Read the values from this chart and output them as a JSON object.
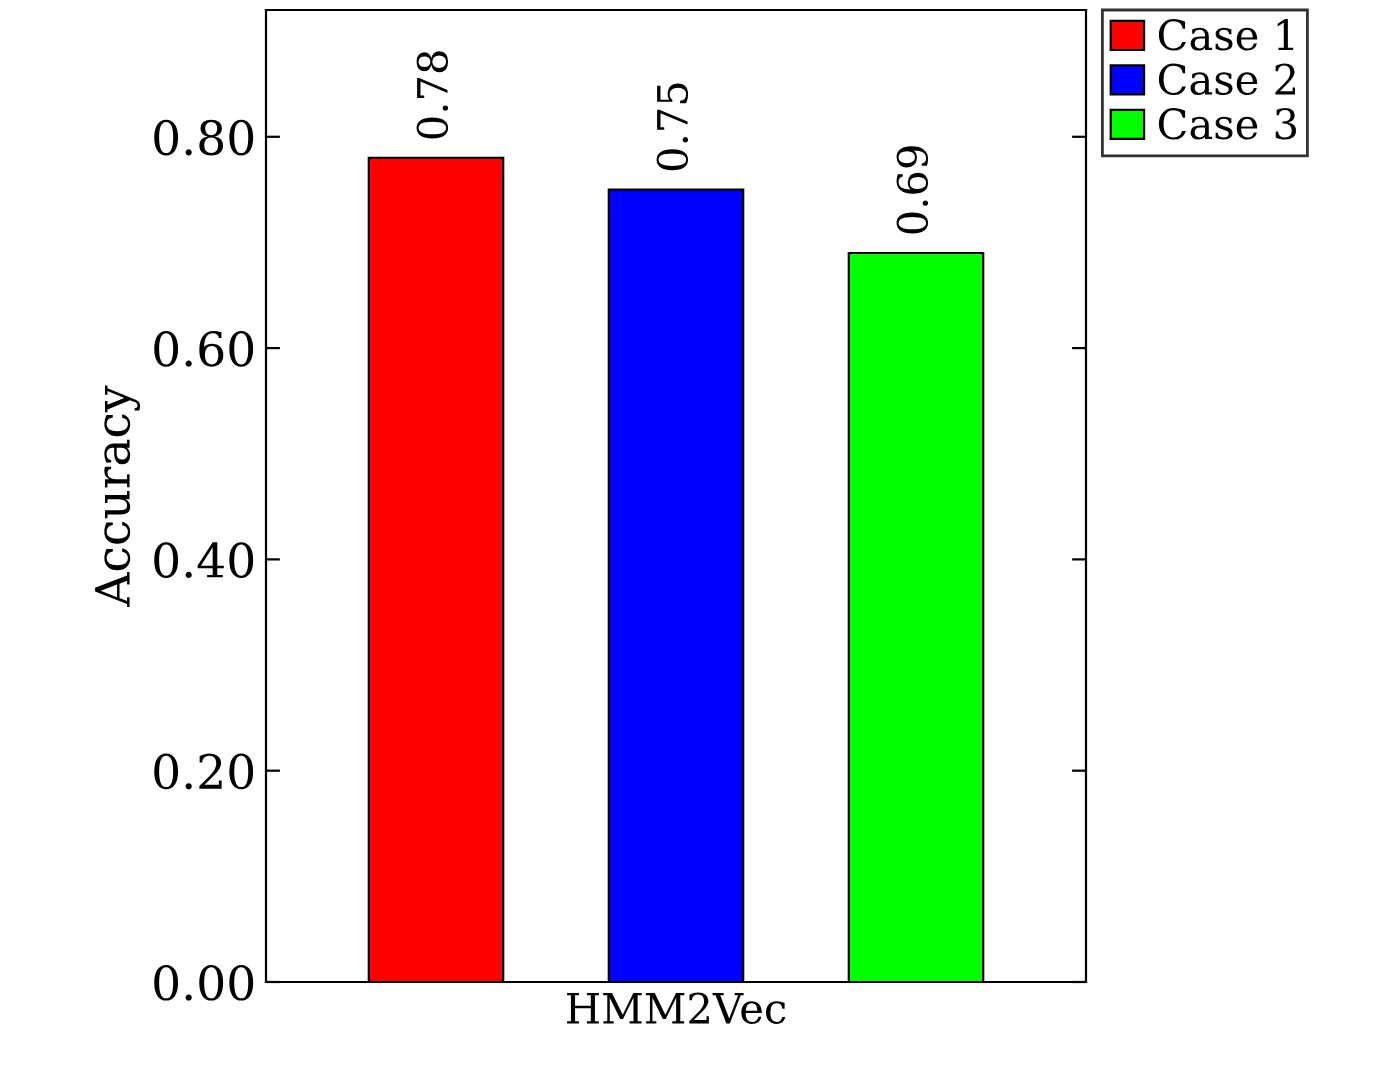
{
  "chart_data": {
    "type": "bar",
    "categories": [
      null,
      "HMM2Vec",
      null
    ],
    "ylabel": "Accuracy",
    "series": [
      {
        "name": "Case 1",
        "color": "#ff0000",
        "values": [
          0.78,
          null,
          null
        ]
      },
      {
        "name": "Case 2",
        "color": "#0000ff",
        "values": [
          null,
          0.75,
          null
        ]
      },
      {
        "name": "Case 3",
        "color": "#00ff00",
        "values": [
          null,
          null,
          0.69
        ]
      }
    ],
    "ylim": [
      0,
      0.92
    ],
    "yticks": [
      {
        "value": 0,
        "label": "0.00"
      },
      {
        "value": 0.2,
        "label": "0.20"
      },
      {
        "value": 0.4,
        "label": "0.40"
      },
      {
        "value": 0.6,
        "label": "0.60"
      },
      {
        "value": 0.8,
        "label": "0.80"
      }
    ],
    "data_labels": true,
    "legend": "top right",
    "grid": false
  }
}
